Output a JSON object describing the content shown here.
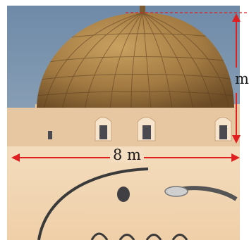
{
  "measurements": {
    "width_label": "8 m",
    "height_label": "m"
  },
  "colors": {
    "arrow": "#e02020",
    "sky": "#7e98b4",
    "dome": "#a8814a",
    "wall": "#f2d7b8",
    "label": "#1a1a1a"
  }
}
